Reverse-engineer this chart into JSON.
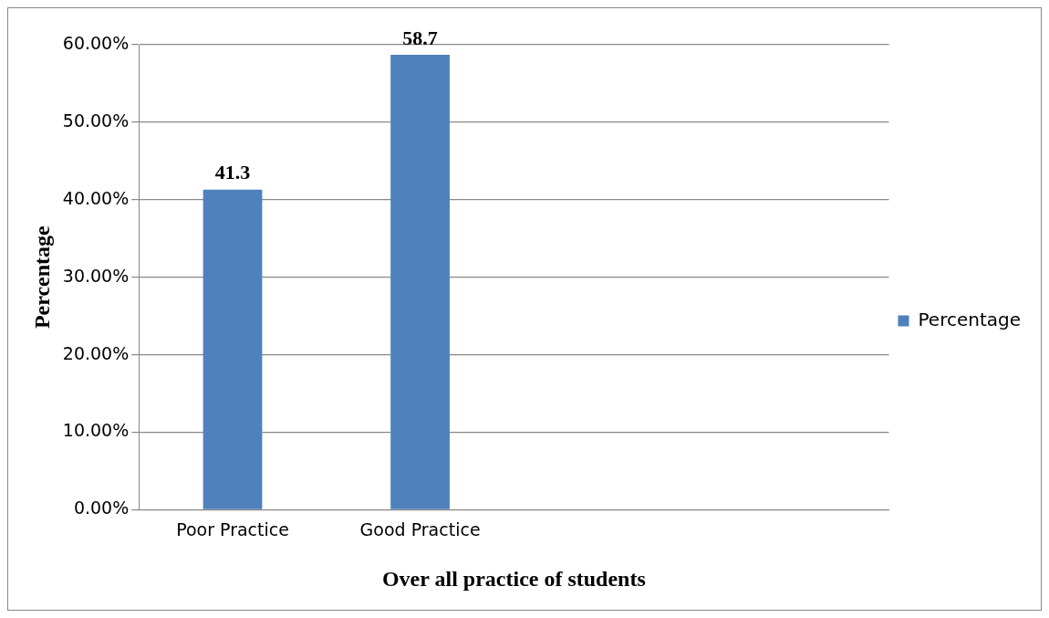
{
  "chart_data": {
    "type": "bar",
    "xlabel": "Over all practice of students",
    "ylabel": "Percentage",
    "categories": [
      "Poor Practice",
      "Good Practice",
      null,
      null
    ],
    "series": [
      {
        "name": "Percentage",
        "color": "#4f81bd",
        "values": [
          41.3,
          58.7,
          null,
          null
        ]
      }
    ],
    "ylim": [
      0,
      60
    ],
    "yticks": [
      {
        "value": 0,
        "label": "0.00%"
      },
      {
        "value": 10,
        "label": "10.00%"
      },
      {
        "value": 20,
        "label": "20.00%"
      },
      {
        "value": 30,
        "label": "30.00%"
      },
      {
        "value": 40,
        "label": "40.00%"
      },
      {
        "value": 50,
        "label": "50.00%"
      },
      {
        "value": 60,
        "label": "60.00%"
      }
    ],
    "grid": "y",
    "legend": "right",
    "data_labels": true
  }
}
